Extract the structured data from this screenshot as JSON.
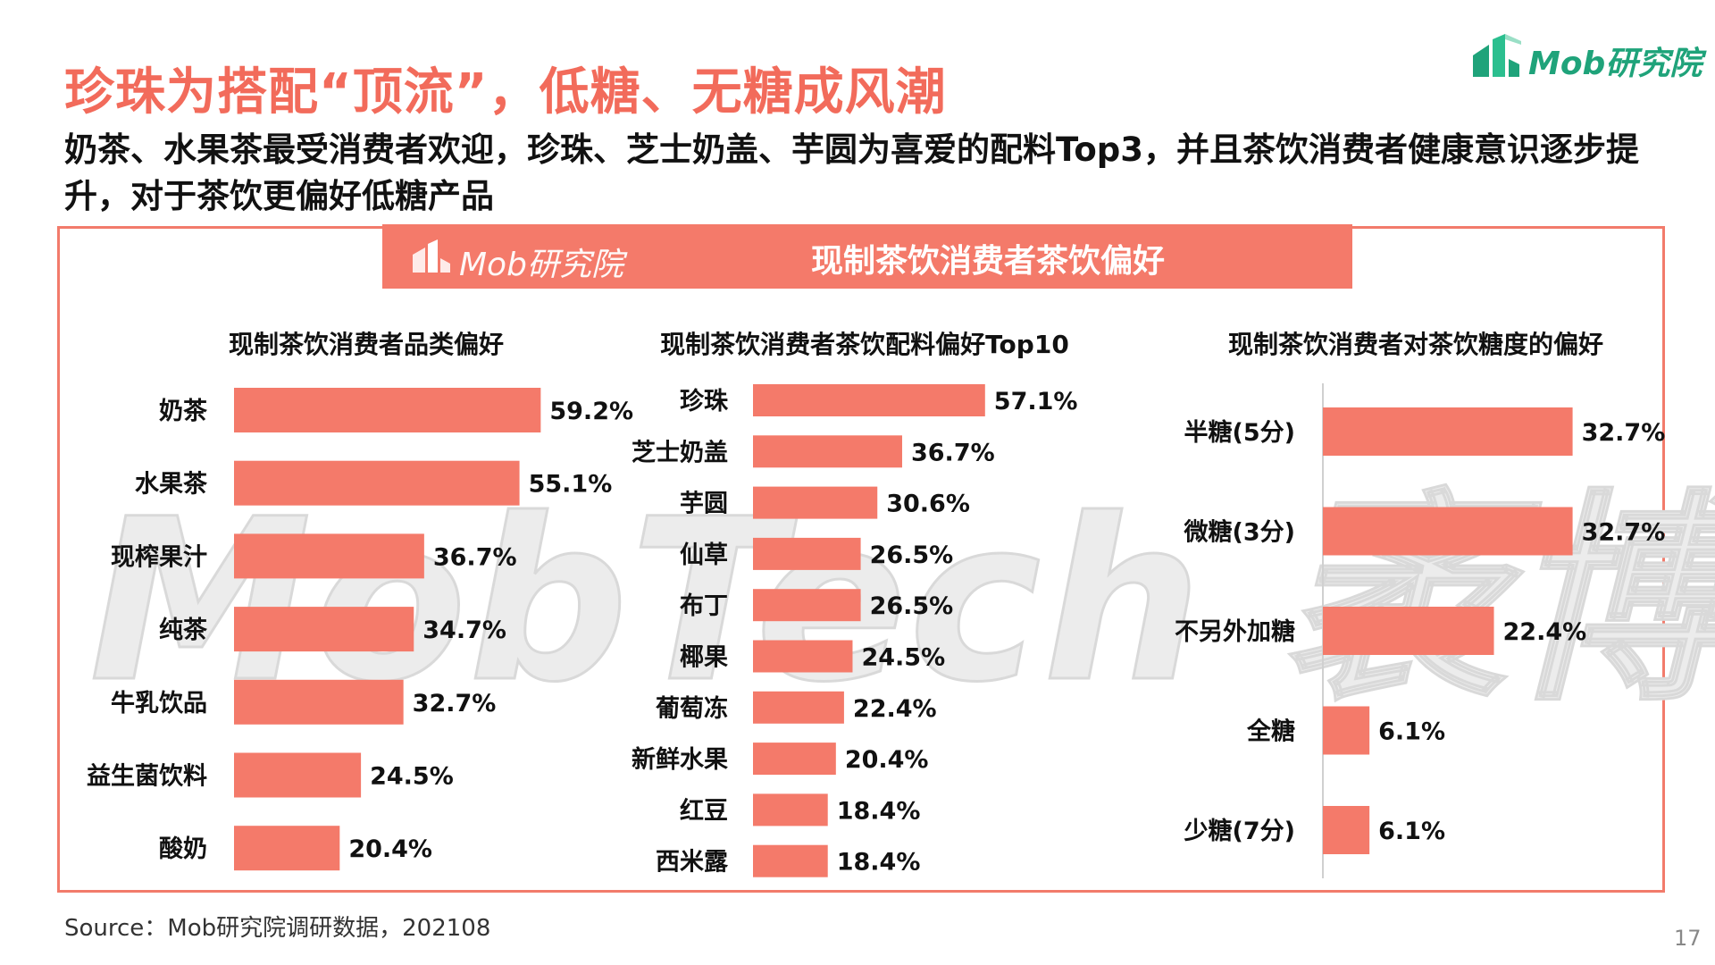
{
  "header": {
    "title": "珍珠为搭配“顶流”，低糖、无糖成风潮",
    "subtitle": "奶茶、水果茶最受消费者欢迎，珍珠、芝士奶盖、芋圆为喜爱的配料Top3，并且茶饮消费者健康意识逐步提升，对于茶饮更偏好低糖产品",
    "logo_text": "Mob研究院"
  },
  "banner": {
    "logo_text": "Mob研究院",
    "title": "现制茶饮消费者茶饮偏好"
  },
  "watermark": "MobTech 袤博",
  "footer": {
    "source": "Source：Mob研究院调研数据，202108",
    "page_number": "17"
  },
  "colors": {
    "accent": "#f26b5b",
    "bar": "#f47a6a",
    "brand_green": "#1fa37a"
  },
  "chart_data": [
    {
      "type": "bar",
      "orientation": "horizontal",
      "title": "现制茶饮消费者品类偏好",
      "categories": [
        "奶茶",
        "水果茶",
        "现榨果汁",
        "纯茶",
        "牛乳饮品",
        "益生菌饮料",
        "酸奶"
      ],
      "values": [
        59.2,
        55.1,
        36.7,
        34.7,
        32.7,
        24.5,
        20.4
      ],
      "labels": [
        "59.2%",
        "55.1%",
        "36.7%",
        "34.7%",
        "32.7%",
        "24.5%",
        "20.4%"
      ],
      "unit": "%",
      "xlim": [
        0,
        60
      ]
    },
    {
      "type": "bar",
      "orientation": "horizontal",
      "title": "现制茶饮消费者茶饮配料偏好Top10",
      "categories": [
        "珍珠",
        "芝士奶盖",
        "芋圆",
        "仙草",
        "布丁",
        "椰果",
        "葡萄冻",
        "新鲜水果",
        "红豆",
        "西米露"
      ],
      "values": [
        57.1,
        36.7,
        30.6,
        26.5,
        26.5,
        24.5,
        22.4,
        20.4,
        18.4,
        18.4
      ],
      "labels": [
        "57.1%",
        "36.7%",
        "30.6%",
        "26.5%",
        "26.5%",
        "24.5%",
        "22.4%",
        "20.4%",
        "18.4%",
        "18.4%"
      ],
      "unit": "%",
      "xlim": [
        0,
        60
      ]
    },
    {
      "type": "bar",
      "orientation": "horizontal",
      "title": "现制茶饮消费者对茶饮糖度的偏好",
      "categories": [
        "半糖(5分)",
        "微糖(3分)",
        "不另外加糖",
        "全糖",
        "少糖(7分)"
      ],
      "values": [
        32.7,
        32.7,
        22.4,
        6.1,
        6.1
      ],
      "labels": [
        "32.7%",
        "32.7%",
        "22.4%",
        "6.1%",
        "6.1%"
      ],
      "unit": "%",
      "xlim": [
        0,
        33
      ]
    }
  ]
}
